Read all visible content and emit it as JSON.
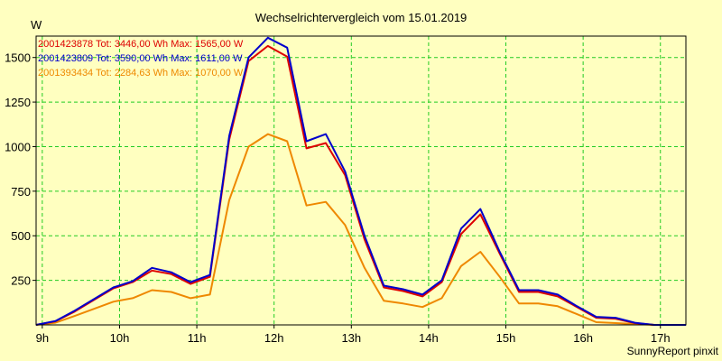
{
  "chart_data": {
    "type": "line",
    "title": "Wechselrichtervergleich vom 15.01.2019",
    "ylabel": "W",
    "xlabel": "",
    "credit": "SunnyReport pinxit",
    "ylim": [
      0,
      1620
    ],
    "xlim": [
      8.92,
      17.33
    ],
    "yticks": [
      250,
      500,
      750,
      1000,
      1250,
      1500
    ],
    "ytick_labels": [
      "250",
      "500",
      "750",
      "1000",
      "1250",
      "1500"
    ],
    "xticks": [
      9,
      10,
      11,
      12,
      13,
      14,
      15,
      16,
      17
    ],
    "xtick_labels": [
      "9h",
      "10h",
      "11h",
      "12h",
      "13h",
      "14h",
      "15h",
      "16h",
      "17h"
    ],
    "grid": true,
    "legend_position": "top-left",
    "x": [
      8.92,
      9.17,
      9.42,
      9.67,
      9.92,
      10.17,
      10.42,
      10.67,
      10.92,
      11.17,
      11.42,
      11.67,
      11.92,
      12.17,
      12.42,
      12.67,
      12.92,
      13.17,
      13.42,
      13.67,
      13.92,
      14.17,
      14.42,
      14.67,
      14.92,
      15.17,
      15.42,
      15.67,
      15.92,
      16.17,
      16.42,
      16.67,
      16.92,
      17.17,
      17.33
    ],
    "series": [
      {
        "name": "2001423878",
        "legend": "2001423878 Tot: 3446,00 Wh Max: 1565,00 W",
        "color": "#dd0000",
        "values": [
          0,
          20,
          75,
          140,
          205,
          240,
          305,
          285,
          230,
          270,
          1040,
          1480,
          1565,
          1505,
          990,
          1020,
          840,
          480,
          210,
          190,
          160,
          240,
          510,
          620,
          400,
          185,
          185,
          160,
          100,
          40,
          35,
          10,
          0,
          0,
          0
        ]
      },
      {
        "name": "2001423809",
        "legend": "2001423809 Tot: 3590,00 Wh Max: 1611,00 W",
        "color": "#0000cc",
        "values": [
          0,
          22,
          80,
          145,
          210,
          245,
          320,
          295,
          240,
          280,
          1060,
          1500,
          1611,
          1555,
          1030,
          1070,
          860,
          500,
          220,
          200,
          170,
          250,
          540,
          650,
          410,
          195,
          195,
          170,
          105,
          45,
          40,
          12,
          0,
          0,
          0
        ]
      },
      {
        "name": "2001393434",
        "legend": "2001393434 Tot: 2284,63 Wh Max: 1070,00 W",
        "color": "#ee8800",
        "values": [
          0,
          12,
          50,
          90,
          130,
          150,
          195,
          185,
          150,
          170,
          700,
          1000,
          1070,
          1030,
          670,
          690,
          560,
          320,
          135,
          120,
          100,
          150,
          330,
          410,
          270,
          120,
          120,
          105,
          60,
          15,
          10,
          5,
          0,
          0,
          0
        ]
      }
    ]
  }
}
